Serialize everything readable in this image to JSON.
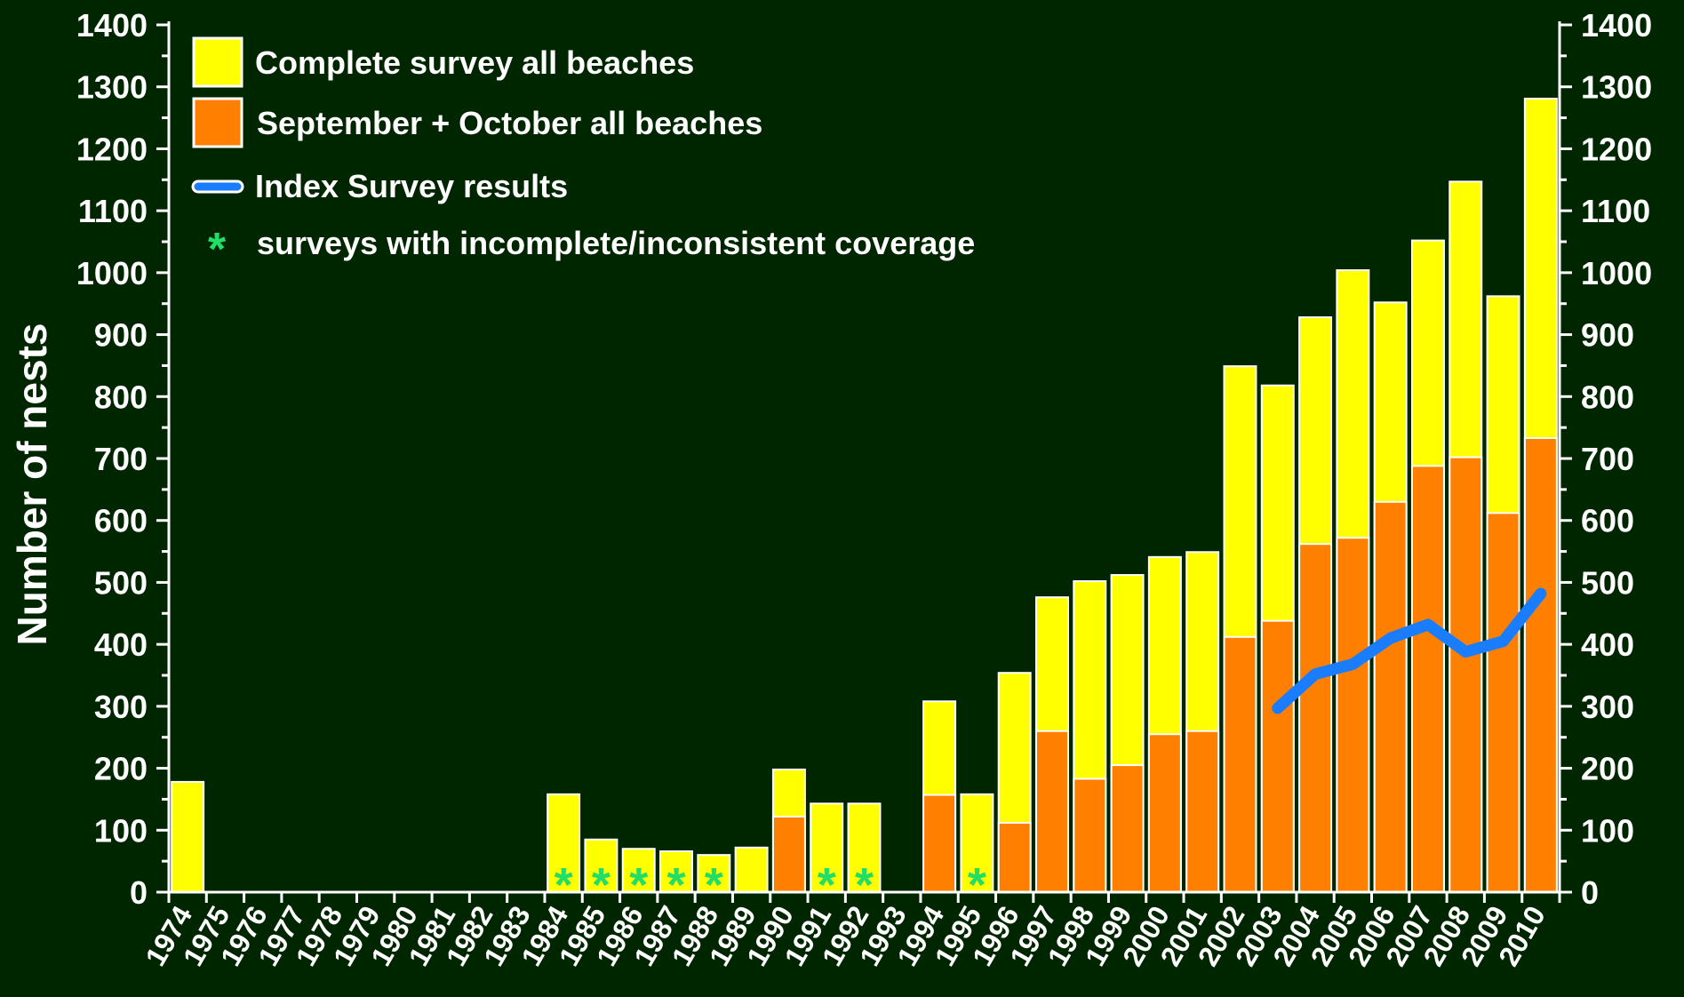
{
  "chart_data": {
    "type": "bar",
    "ylabel": "Number of nests",
    "xlabel": "",
    "ylim": [
      0,
      1400
    ],
    "yticks": [
      0,
      100,
      200,
      300,
      400,
      500,
      600,
      700,
      800,
      900,
      1000,
      1100,
      1200,
      1300,
      1400
    ],
    "secondary_y_axis": true,
    "grid": false,
    "legend_position": "top-left",
    "categories": [
      "1974",
      "1975",
      "1976",
      "1977",
      "1978",
      "1979",
      "1980",
      "1981",
      "1982",
      "1983",
      "1984",
      "1985",
      "1986",
      "1987",
      "1988",
      "1989",
      "1990",
      "1991",
      "1992",
      "1993",
      "1994",
      "1995",
      "1996",
      "1997",
      "1998",
      "1999",
      "2000",
      "2001",
      "2002",
      "2003",
      "2004",
      "2005",
      "2006",
      "2007",
      "2008",
      "2009",
      "2010"
    ],
    "series": [
      {
        "name": "Complete survey all beaches",
        "kind": "bar",
        "color": "#ffff00",
        "values": [
          178,
          0,
          0,
          0,
          0,
          0,
          0,
          0,
          0,
          0,
          158,
          85,
          70,
          66,
          60,
          72,
          198,
          143,
          143,
          0,
          308,
          158,
          354,
          476,
          502,
          512,
          541,
          549,
          849,
          818,
          928,
          1004,
          952,
          1052,
          1147,
          962,
          1281
        ]
      },
      {
        "name": "September + October all beaches",
        "kind": "bar",
        "color": "#ff8000",
        "values": [
          0,
          0,
          0,
          0,
          0,
          0,
          0,
          0,
          0,
          0,
          0,
          0,
          0,
          0,
          0,
          0,
          122,
          0,
          0,
          0,
          157,
          0,
          112,
          260,
          183,
          205,
          255,
          260,
          412,
          438,
          562,
          572,
          630,
          688,
          702,
          612,
          733
        ]
      },
      {
        "name": "Index Survey results",
        "kind": "line",
        "color": "#1a7cff",
        "x": [
          "2003",
          "2004",
          "2005",
          "2006",
          "2007",
          "2008",
          "2009",
          "2010"
        ],
        "values": [
          297,
          352,
          368,
          410,
          432,
          388,
          405,
          482
        ]
      }
    ],
    "incomplete_coverage": {
      "label": "surveys with incomplete/inconsistent coverage",
      "marker": "*",
      "color": "#22dd66",
      "years": [
        "1984",
        "1985",
        "1986",
        "1987",
        "1988",
        "1991",
        "1992",
        "1995"
      ]
    }
  }
}
